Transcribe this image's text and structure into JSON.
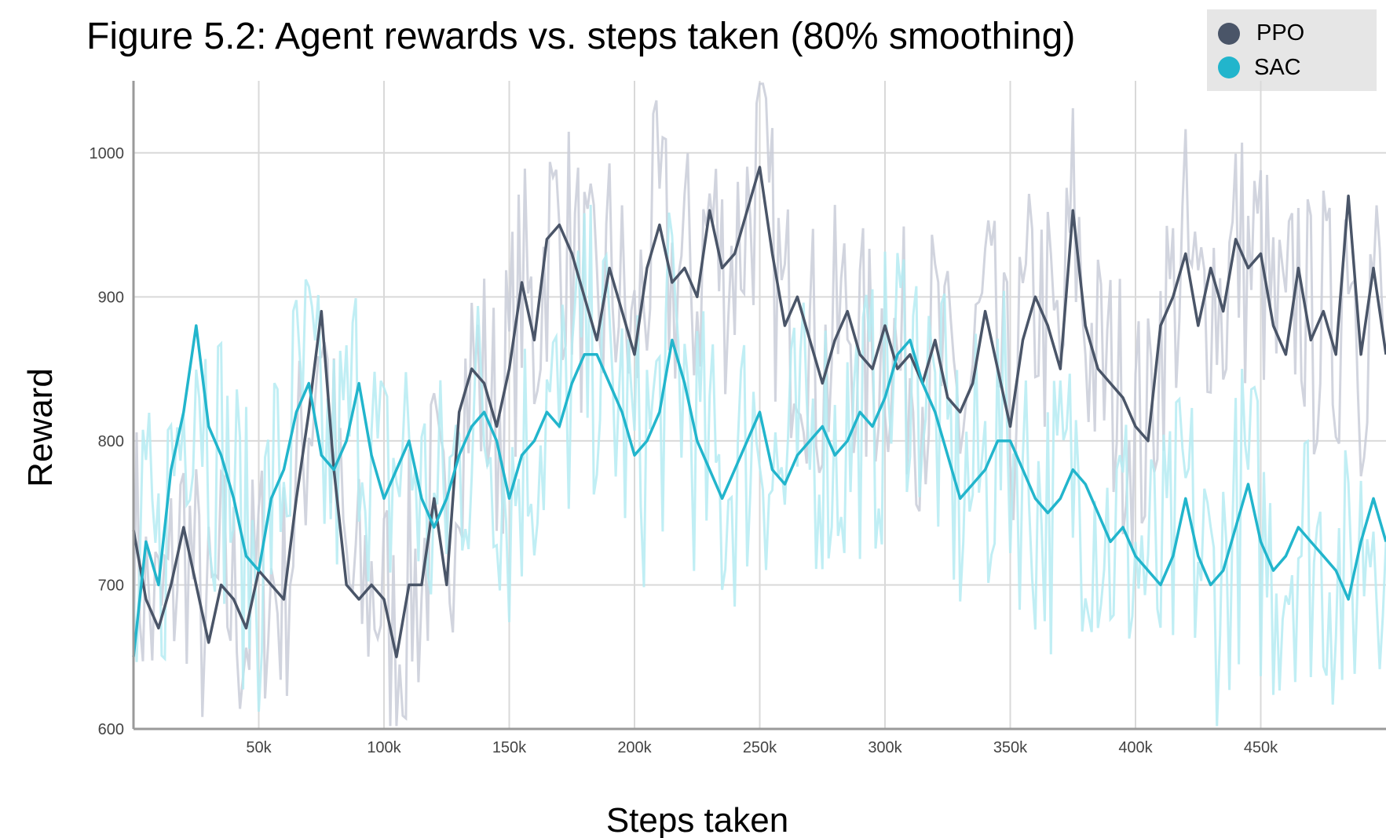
{
  "chart_data": {
    "type": "line",
    "title": "Figure 5.2: Agent rewards vs. steps taken (80% smoothing)",
    "xlabel": "Steps taken",
    "ylabel": "Reward",
    "xlim": [
      0,
      500000
    ],
    "ylim": [
      600,
      1050
    ],
    "x_ticks": [
      50000,
      100000,
      150000,
      200000,
      250000,
      300000,
      350000,
      400000,
      450000
    ],
    "x_tick_labels": [
      "50k",
      "100k",
      "150k",
      "200k",
      "250k",
      "300k",
      "350k",
      "400k",
      "450k"
    ],
    "y_ticks": [
      600,
      700,
      800,
      900,
      1000
    ],
    "y_tick_labels": [
      "600",
      "700",
      "800",
      "900",
      "1000"
    ],
    "grid": true,
    "legend": "top-right",
    "series": [
      {
        "name": "PPO",
        "color": "#4a5568",
        "raw_color": "#c9ccd8",
        "x": [
          0,
          5000,
          10000,
          15000,
          20000,
          25000,
          30000,
          35000,
          40000,
          45000,
          50000,
          55000,
          60000,
          65000,
          70000,
          75000,
          80000,
          85000,
          90000,
          95000,
          100000,
          105000,
          110000,
          115000,
          120000,
          125000,
          130000,
          135000,
          140000,
          145000,
          150000,
          155000,
          160000,
          165000,
          170000,
          175000,
          180000,
          185000,
          190000,
          195000,
          200000,
          205000,
          210000,
          215000,
          220000,
          225000,
          230000,
          235000,
          240000,
          245000,
          250000,
          255000,
          260000,
          265000,
          270000,
          275000,
          280000,
          285000,
          290000,
          295000,
          300000,
          305000,
          310000,
          315000,
          320000,
          325000,
          330000,
          335000,
          340000,
          345000,
          350000,
          355000,
          360000,
          365000,
          370000,
          375000,
          380000,
          385000,
          390000,
          395000,
          400000,
          405000,
          410000,
          415000,
          420000,
          425000,
          430000,
          435000,
          440000,
          445000,
          450000,
          455000,
          460000,
          465000,
          470000,
          475000,
          480000,
          485000,
          490000,
          495000,
          500000
        ],
        "values": [
          738,
          690,
          670,
          700,
          740,
          700,
          660,
          700,
          690,
          670,
          710,
          700,
          690,
          760,
          820,
          890,
          780,
          700,
          690,
          700,
          690,
          650,
          700,
          700,
          760,
          700,
          820,
          850,
          840,
          810,
          850,
          910,
          870,
          940,
          950,
          930,
          900,
          870,
          920,
          890,
          860,
          920,
          950,
          910,
          920,
          900,
          960,
          920,
          930,
          960,
          990,
          930,
          880,
          900,
          870,
          840,
          870,
          890,
          860,
          850,
          880,
          850,
          860,
          840,
          870,
          830,
          820,
          840,
          890,
          850,
          810,
          870,
          900,
          880,
          850,
          960,
          880,
          850,
          840,
          830,
          810,
          800,
          880,
          900,
          930,
          880,
          920,
          890,
          940,
          920,
          930,
          880,
          860,
          920,
          870,
          890,
          860,
          970,
          860,
          920,
          860
        ]
      },
      {
        "name": "SAC",
        "color": "#22b5cc",
        "raw_color": "#b5ebf2",
        "x": [
          0,
          5000,
          10000,
          15000,
          20000,
          25000,
          30000,
          35000,
          40000,
          45000,
          50000,
          55000,
          60000,
          65000,
          70000,
          75000,
          80000,
          85000,
          90000,
          95000,
          100000,
          105000,
          110000,
          115000,
          120000,
          125000,
          130000,
          135000,
          140000,
          145000,
          150000,
          155000,
          160000,
          165000,
          170000,
          175000,
          180000,
          185000,
          190000,
          195000,
          200000,
          205000,
          210000,
          215000,
          220000,
          225000,
          230000,
          235000,
          240000,
          245000,
          250000,
          255000,
          260000,
          265000,
          270000,
          275000,
          280000,
          285000,
          290000,
          295000,
          300000,
          305000,
          310000,
          315000,
          320000,
          325000,
          330000,
          335000,
          340000,
          345000,
          350000,
          355000,
          360000,
          365000,
          370000,
          375000,
          380000,
          385000,
          390000,
          395000,
          400000,
          405000,
          410000,
          415000,
          420000,
          425000,
          430000,
          435000,
          440000,
          445000,
          450000,
          455000,
          460000,
          465000,
          470000,
          475000,
          480000,
          485000,
          490000,
          495000,
          500000
        ],
        "values": [
          650,
          730,
          700,
          780,
          820,
          880,
          810,
          790,
          760,
          720,
          710,
          760,
          780,
          820,
          840,
          790,
          780,
          800,
          840,
          790,
          760,
          780,
          800,
          760,
          740,
          760,
          790,
          810,
          820,
          800,
          760,
          790,
          800,
          820,
          810,
          840,
          860,
          860,
          840,
          820,
          790,
          800,
          820,
          870,
          840,
          800,
          780,
          760,
          780,
          800,
          820,
          780,
          770,
          790,
          800,
          810,
          790,
          800,
          820,
          810,
          830,
          860,
          870,
          840,
          820,
          790,
          760,
          770,
          780,
          800,
          800,
          780,
          760,
          750,
          760,
          780,
          770,
          750,
          730,
          740,
          720,
          710,
          700,
          720,
          760,
          720,
          700,
          710,
          740,
          770,
          730,
          710,
          720,
          740,
          730,
          720,
          710,
          690,
          730,
          760,
          730
        ]
      }
    ]
  }
}
